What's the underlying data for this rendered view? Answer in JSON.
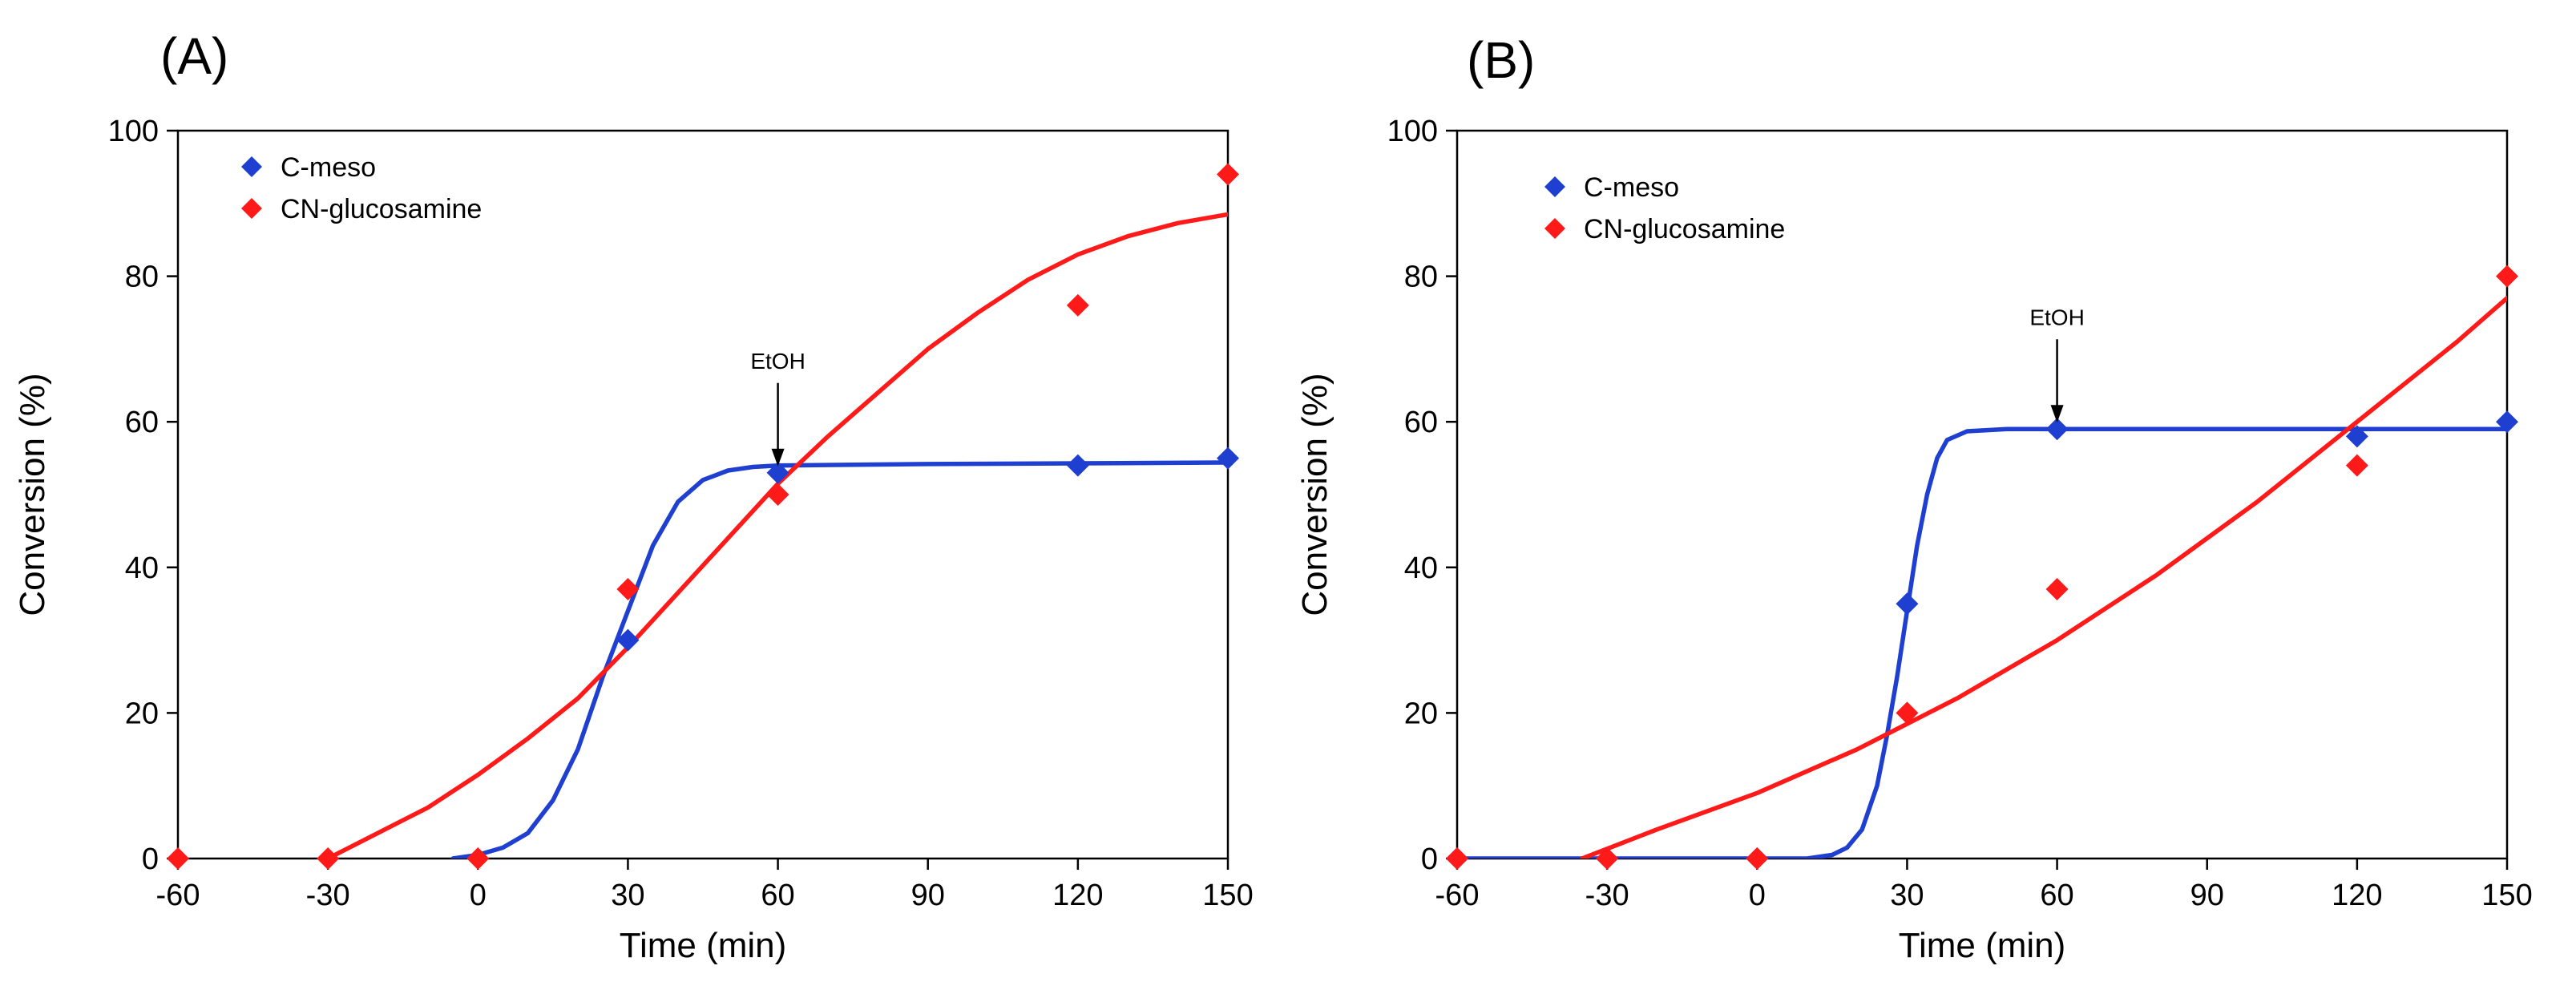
{
  "chart_data": [
    {
      "type": "scatter",
      "panel_label": "(A)",
      "xlabel": "Time (min)",
      "ylabel": "Conversion (%)",
      "xlim": [
        -60,
        150
      ],
      "ylim": [
        0,
        100
      ],
      "xticks": [
        -60,
        -30,
        0,
        30,
        60,
        90,
        120,
        150
      ],
      "yticks": [
        0,
        20,
        40,
        60,
        80,
        100
      ],
      "legend_position": "top-left",
      "annotation": {
        "text": "EtOH",
        "x": 60,
        "y": 53
      },
      "series": [
        {
          "name": "C-meso",
          "color": "#1f3fd0",
          "x": [
            30,
            60,
            120,
            150
          ],
          "y": [
            30,
            53,
            54,
            55
          ],
          "fit": [
            [
              -5,
              0
            ],
            [
              0,
              0.5
            ],
            [
              5,
              1.5
            ],
            [
              10,
              3.5
            ],
            [
              15,
              8
            ],
            [
              20,
              15
            ],
            [
              25,
              25
            ],
            [
              30,
              34
            ],
            [
              35,
              43
            ],
            [
              40,
              49
            ],
            [
              45,
              52
            ],
            [
              50,
              53.3
            ],
            [
              55,
              53.8
            ],
            [
              60,
              54
            ],
            [
              90,
              54.2
            ],
            [
              120,
              54.3
            ],
            [
              150,
              54.4
            ]
          ]
        },
        {
          "name": "CN-glucosamine",
          "color": "#ff1a1a",
          "x": [
            -60,
            -30,
            0,
            30,
            60,
            120,
            150
          ],
          "y": [
            0,
            0,
            0,
            37,
            50,
            76,
            94
          ],
          "fit": [
            [
              -30,
              0
            ],
            [
              -20,
              3.5
            ],
            [
              -10,
              7
            ],
            [
              0,
              11.5
            ],
            [
              10,
              16.5
            ],
            [
              20,
              22
            ],
            [
              30,
              29
            ],
            [
              40,
              36.5
            ],
            [
              50,
              44
            ],
            [
              60,
              51.5
            ],
            [
              70,
              58
            ],
            [
              80,
              64
            ],
            [
              90,
              70
            ],
            [
              100,
              75
            ],
            [
              110,
              79.5
            ],
            [
              120,
              83
            ],
            [
              130,
              85.5
            ],
            [
              140,
              87.3
            ],
            [
              150,
              88.5
            ]
          ]
        }
      ]
    },
    {
      "type": "scatter",
      "panel_label": "(B)",
      "xlabel": "Time (min)",
      "ylabel": "Conversion (%)",
      "xlim": [
        -60,
        150
      ],
      "ylim": [
        0,
        100
      ],
      "xticks": [
        -60,
        -30,
        0,
        30,
        60,
        90,
        120,
        150
      ],
      "yticks": [
        0,
        20,
        40,
        60,
        80,
        100
      ],
      "legend_position": "top-left",
      "annotation": {
        "text": "EtOH",
        "x": 60,
        "y": 59
      },
      "series": [
        {
          "name": "C-meso",
          "color": "#1f3fd0",
          "x": [
            -60,
            -30,
            0,
            30,
            60,
            120,
            150
          ],
          "y": [
            0,
            0,
            0,
            35,
            59,
            58,
            60
          ],
          "fit": [
            [
              -60,
              0
            ],
            [
              10,
              0
            ],
            [
              15,
              0.5
            ],
            [
              18,
              1.5
            ],
            [
              21,
              4
            ],
            [
              24,
              10
            ],
            [
              26,
              17
            ],
            [
              28,
              25
            ],
            [
              30,
              34
            ],
            [
              32,
              43
            ],
            [
              34,
              50
            ],
            [
              36,
              55
            ],
            [
              38,
              57.5
            ],
            [
              42,
              58.7
            ],
            [
              50,
              59
            ],
            [
              150,
              59
            ]
          ]
        },
        {
          "name": "CN-glucosamine",
          "color": "#ff1a1a",
          "x": [
            -60,
            -30,
            0,
            30,
            60,
            120,
            150
          ],
          "y": [
            0,
            0,
            0,
            20,
            37,
            54,
            80
          ],
          "fit": [
            [
              -35,
              0
            ],
            [
              -20,
              4
            ],
            [
              0,
              9
            ],
            [
              20,
              15
            ],
            [
              30,
              18.5
            ],
            [
              40,
              22
            ],
            [
              60,
              30
            ],
            [
              80,
              39
            ],
            [
              100,
              49
            ],
            [
              120,
              60
            ],
            [
              140,
              71
            ],
            [
              150,
              77
            ]
          ]
        }
      ]
    }
  ]
}
